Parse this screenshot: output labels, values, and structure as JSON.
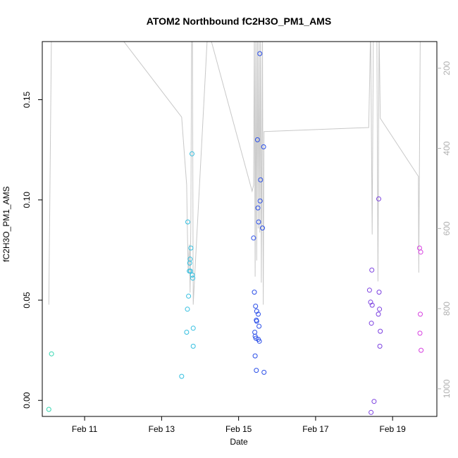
{
  "chart_data": {
    "type": "scatter",
    "title": "ATOM2 Northbound fC2H3O_PM1_AMS",
    "xlabel": "Date",
    "ylabel": "fC2H3O_PM1_AMS",
    "x_unit": "days (Feb 2017 day-of-month)",
    "xlim": [
      9.9,
      20.15
    ],
    "ylim": [
      -0.008,
      0.179
    ],
    "x_ticks": [
      {
        "value": 11,
        "label": "Feb 11"
      },
      {
        "value": 13,
        "label": "Feb 13"
      },
      {
        "value": 15,
        "label": "Feb 15"
      },
      {
        "value": 17,
        "label": "Feb 17"
      },
      {
        "value": 19,
        "label": "Feb 19"
      }
    ],
    "y_ticks": [
      {
        "value": 0.0,
        "label": "0.00"
      },
      {
        "value": 0.05,
        "label": "0.05"
      },
      {
        "value": 0.1,
        "label": "0.10"
      },
      {
        "value": 0.15,
        "label": "0.15"
      }
    ],
    "y2_ticks": [
      {
        "value": 200,
        "label": "200"
      },
      {
        "value": 400,
        "label": "400"
      },
      {
        "value": 600,
        "label": "600"
      },
      {
        "value": 800,
        "label": "800"
      },
      {
        "value": 1000,
        "label": "1000"
      }
    ],
    "y2_scale": "reversed",
    "y2_range_at_plot": [
      133.5,
      1068.9
    ],
    "y2_color": "#b0b0b0",
    "line_color": "#c8c8c8",
    "points": [
      {
        "x": 10.07,
        "y": -0.0045,
        "color": "#33d6b0"
      },
      {
        "x": 10.14,
        "y": 0.0232,
        "color": "#33d6b0"
      },
      {
        "x": 13.52,
        "y": 0.012,
        "color": "#33bfe0"
      },
      {
        "x": 13.65,
        "y": 0.034,
        "color": "#33bfe0"
      },
      {
        "x": 13.67,
        "y": 0.0455,
        "color": "#33bfe0"
      },
      {
        "x": 13.68,
        "y": 0.089,
        "color": "#33bfe0"
      },
      {
        "x": 13.7,
        "y": 0.052,
        "color": "#33bfe0"
      },
      {
        "x": 13.72,
        "y": 0.0645,
        "color": "#33bfe0"
      },
      {
        "x": 13.73,
        "y": 0.0685,
        "color": "#33bfe0"
      },
      {
        "x": 13.74,
        "y": 0.0705,
        "color": "#33bfe0"
      },
      {
        "x": 13.75,
        "y": 0.0645,
        "color": "#33bfe0"
      },
      {
        "x": 13.76,
        "y": 0.076,
        "color": "#33bfe0"
      },
      {
        "x": 13.79,
        "y": 0.123,
        "color": "#33bfe0"
      },
      {
        "x": 13.8,
        "y": 0.0625,
        "color": "#33bfe0"
      },
      {
        "x": 13.81,
        "y": 0.061,
        "color": "#33bfe0"
      },
      {
        "x": 13.82,
        "y": 0.036,
        "color": "#33bfe0"
      },
      {
        "x": 13.82,
        "y": 0.027,
        "color": "#33bfe0"
      },
      {
        "x": 15.39,
        "y": 0.081,
        "color": "#2a4ee8"
      },
      {
        "x": 15.41,
        "y": 0.054,
        "color": "#2a4ee8"
      },
      {
        "x": 15.42,
        "y": 0.034,
        "color": "#2a4ee8"
      },
      {
        "x": 15.43,
        "y": 0.032,
        "color": "#2a4ee8"
      },
      {
        "x": 15.43,
        "y": 0.0222,
        "color": "#2a4ee8"
      },
      {
        "x": 15.44,
        "y": 0.047,
        "color": "#2a4ee8"
      },
      {
        "x": 15.45,
        "y": 0.031,
        "color": "#2a4ee8"
      },
      {
        "x": 15.46,
        "y": 0.04,
        "color": "#2a4ee8"
      },
      {
        "x": 15.46,
        "y": 0.015,
        "color": "#2a4ee8"
      },
      {
        "x": 15.47,
        "y": 0.0395,
        "color": "#2a4ee8"
      },
      {
        "x": 15.47,
        "y": 0.0445,
        "color": "#2a4ee8"
      },
      {
        "x": 15.49,
        "y": 0.13,
        "color": "#2a4ee8"
      },
      {
        "x": 15.5,
        "y": 0.096,
        "color": "#2a4ee8"
      },
      {
        "x": 15.51,
        "y": 0.043,
        "color": "#2a4ee8"
      },
      {
        "x": 15.51,
        "y": 0.0305,
        "color": "#2a4ee8"
      },
      {
        "x": 15.52,
        "y": 0.089,
        "color": "#2a4ee8"
      },
      {
        "x": 15.53,
        "y": 0.037,
        "color": "#2a4ee8"
      },
      {
        "x": 15.54,
        "y": 0.0295,
        "color": "#2a4ee8"
      },
      {
        "x": 15.55,
        "y": 0.173,
        "color": "#2a4ee8"
      },
      {
        "x": 15.56,
        "y": 0.0995,
        "color": "#2a4ee8"
      },
      {
        "x": 15.57,
        "y": 0.11,
        "color": "#2a4ee8"
      },
      {
        "x": 15.62,
        "y": 0.086,
        "color": "#2a4ee8"
      },
      {
        "x": 15.65,
        "y": 0.1265,
        "color": "#2a4ee8"
      },
      {
        "x": 15.66,
        "y": 0.014,
        "color": "#2a4ee8"
      },
      {
        "x": 18.4,
        "y": 0.055,
        "color": "#7b3fe0"
      },
      {
        "x": 18.43,
        "y": 0.049,
        "color": "#7b3fe0"
      },
      {
        "x": 18.44,
        "y": -0.006,
        "color": "#7b3fe0"
      },
      {
        "x": 18.45,
        "y": 0.0385,
        "color": "#7b3fe0"
      },
      {
        "x": 18.46,
        "y": 0.065,
        "color": "#7b3fe0"
      },
      {
        "x": 18.47,
        "y": 0.0475,
        "color": "#7b3fe0"
      },
      {
        "x": 18.52,
        "y": -0.0005,
        "color": "#7b3fe0"
      },
      {
        "x": 18.63,
        "y": 0.043,
        "color": "#7b3fe0"
      },
      {
        "x": 18.64,
        "y": 0.1005,
        "color": "#7b3fe0"
      },
      {
        "x": 18.65,
        "y": 0.054,
        "color": "#7b3fe0"
      },
      {
        "x": 18.66,
        "y": 0.0455,
        "color": "#7b3fe0"
      },
      {
        "x": 18.67,
        "y": 0.027,
        "color": "#7b3fe0"
      },
      {
        "x": 18.68,
        "y": 0.0345,
        "color": "#7b3fe0"
      },
      {
        "x": 19.7,
        "y": 0.076,
        "color": "#d63fe0"
      },
      {
        "x": 19.71,
        "y": 0.0335,
        "color": "#d63fe0"
      },
      {
        "x": 19.72,
        "y": 0.043,
        "color": "#d63fe0"
      },
      {
        "x": 19.73,
        "y": 0.074,
        "color": "#d63fe0"
      },
      {
        "x": 19.74,
        "y": 0.025,
        "color": "#d63fe0"
      }
    ],
    "line_series": [
      [
        10.07,
        790
      ],
      [
        10.14,
        100
      ],
      [
        11.75,
        100
      ],
      [
        13.52,
        322
      ],
      [
        13.65,
        491
      ],
      [
        13.67,
        610
      ],
      [
        13.69,
        710
      ],
      [
        13.72,
        640
      ],
      [
        13.74,
        760
      ],
      [
        13.76,
        580
      ],
      [
        13.78,
        100
      ],
      [
        13.8,
        100
      ],
      [
        13.82,
        790
      ],
      [
        14.2,
        100
      ],
      [
        15.35,
        507
      ],
      [
        15.39,
        492
      ],
      [
        15.41,
        100
      ],
      [
        15.43,
        720
      ],
      [
        15.45,
        100
      ],
      [
        15.47,
        680
      ],
      [
        15.49,
        100
      ],
      [
        15.51,
        600
      ],
      [
        15.53,
        100
      ],
      [
        15.55,
        610
      ],
      [
        15.57,
        100
      ],
      [
        15.59,
        735
      ],
      [
        15.62,
        100
      ],
      [
        15.64,
        790
      ],
      [
        15.66,
        358
      ],
      [
        18.38,
        348
      ],
      [
        18.43,
        100
      ],
      [
        18.47,
        615
      ],
      [
        18.5,
        100
      ],
      [
        18.59,
        100
      ],
      [
        18.62,
        732
      ],
      [
        18.65,
        100
      ],
      [
        18.68,
        325
      ],
      [
        19.67,
        470
      ],
      [
        19.68,
        710
      ],
      [
        19.72,
        100
      ]
    ]
  }
}
